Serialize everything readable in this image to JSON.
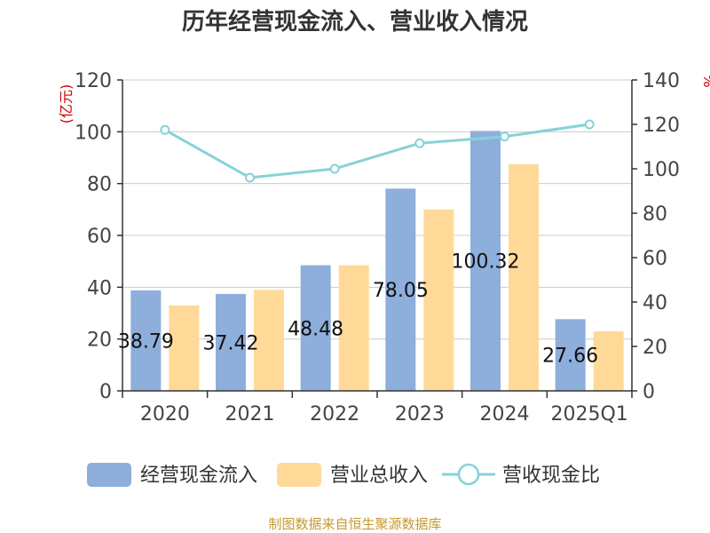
{
  "chart_data": {
    "type": "bar",
    "title": "历年经营现金流入、营业收入情况",
    "categories": [
      "2020",
      "2021",
      "2022",
      "2023",
      "2024",
      "2025Q1"
    ],
    "series": [
      {
        "name": "经营现金流入",
        "type": "bar",
        "axis": "left",
        "color": "#8eaedb",
        "values": [
          38.79,
          37.42,
          48.48,
          78.05,
          100.32,
          27.66
        ],
        "data_labels": [
          "38.79",
          "37.42",
          "48.48",
          "78.05",
          "100.32",
          "27.66"
        ]
      },
      {
        "name": "营业总收入",
        "type": "bar",
        "axis": "left",
        "color": "#ffd998",
        "values": [
          33.0,
          39.0,
          48.5,
          70.0,
          87.5,
          23.0
        ]
      },
      {
        "name": "营收现金比",
        "type": "line",
        "axis": "right",
        "color": "#86d2d8",
        "values": [
          117.5,
          96.0,
          100.0,
          111.5,
          114.5,
          120.0
        ]
      }
    ],
    "left_axis": {
      "unit": "(亿元)",
      "ylim": [
        0,
        120
      ],
      "ticks": [
        "0",
        "20",
        "40",
        "60",
        "80",
        "100",
        "120"
      ]
    },
    "right_axis": {
      "unit": "%",
      "ylim": [
        0,
        140
      ],
      "ticks": [
        "0",
        "20",
        "40",
        "60",
        "80",
        "100",
        "120",
        "140"
      ]
    },
    "grid": true,
    "legend_position": "bottom"
  },
  "source": "制图数据来自恒生聚源数据库"
}
